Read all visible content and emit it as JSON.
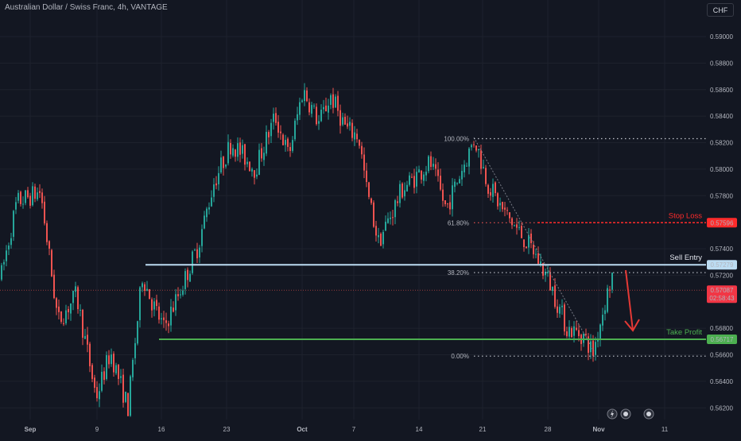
{
  "header": {
    "title": "Australian Dollar / Swiss Franc, 4h, VANTAGE",
    "currency_button": "CHF"
  },
  "colors": {
    "background": "#131722",
    "up": "#26a69a",
    "down": "#ef5350",
    "sell_entry": "#bcdcf2",
    "stop_loss": "#ff2b2b",
    "take_profit": "#4caf50",
    "arrow": "#e53935"
  },
  "price_axis": {
    "ticks": [
      "0.59000",
      "0.58800",
      "0.58600",
      "0.58400",
      "0.58200",
      "0.58000",
      "0.57800",
      "0.57400",
      "0.57200",
      "0.56800",
      "0.56600",
      "0.56400",
      "0.56200"
    ]
  },
  "time_axis": {
    "labels": [
      "Sep",
      "9",
      "16",
      "23",
      "Oct",
      "7",
      "14",
      "21",
      "28",
      "Nov",
      "11"
    ]
  },
  "levels": {
    "stop_loss": {
      "label": "Stop Loss",
      "price": "0.57596"
    },
    "sell_entry": {
      "label": "Sell Entry",
      "price": "0.57279"
    },
    "take_profit": {
      "label": "Take Profit",
      "price": "0.56717"
    },
    "current": {
      "price": "0.57087",
      "countdown": "02:58:43"
    }
  },
  "fibonacci": {
    "levels": [
      "100.00%",
      "61.80%",
      "38.20%",
      "0.00%"
    ],
    "values": [
      0.5823,
      0.57596,
      0.5722,
      0.5659
    ]
  },
  "chart_data": {
    "type": "candlestick",
    "title": "Australian Dollar / Swiss Franc, 4h, VANTAGE",
    "ylim": [
      0.561,
      0.5915
    ],
    "x_labels": [
      "Sep",
      "9",
      "16",
      "23",
      "Oct",
      "7",
      "14",
      "21",
      "28",
      "Nov",
      "11"
    ],
    "close_path": [
      [
        0,
        0.5718
      ],
      [
        20,
        0.5775
      ],
      [
        50,
        0.5783
      ],
      [
        72,
        0.5685
      ],
      [
        95,
        0.5705
      ],
      [
        120,
        0.5628
      ],
      [
        138,
        0.5662
      ],
      [
        160,
        0.562
      ],
      [
        178,
        0.572
      ],
      [
        190,
        0.57
      ],
      [
        205,
        0.568
      ],
      [
        228,
        0.5712
      ],
      [
        248,
        0.5742
      ],
      [
        268,
        0.579
      ],
      [
        290,
        0.582
      ],
      [
        320,
        0.58
      ],
      [
        345,
        0.584
      ],
      [
        362,
        0.581
      ],
      [
        380,
        0.586
      ],
      [
        400,
        0.5835
      ],
      [
        415,
        0.5855
      ],
      [
        435,
        0.583
      ],
      [
        450,
        0.5825
      ],
      [
        460,
        0.5785
      ],
      [
        475,
        0.5745
      ],
      [
        505,
        0.5785
      ],
      [
        540,
        0.5805
      ],
      [
        560,
        0.577
      ],
      [
        580,
        0.58
      ],
      [
        596,
        0.5823
      ],
      [
        612,
        0.579
      ],
      [
        630,
        0.577
      ],
      [
        655,
        0.575
      ],
      [
        670,
        0.5738
      ],
      [
        690,
        0.5715
      ],
      [
        712,
        0.568
      ],
      [
        732,
        0.5675
      ],
      [
        745,
        0.5662
      ],
      [
        760,
        0.57
      ],
      [
        770,
        0.5722
      ]
    ]
  }
}
